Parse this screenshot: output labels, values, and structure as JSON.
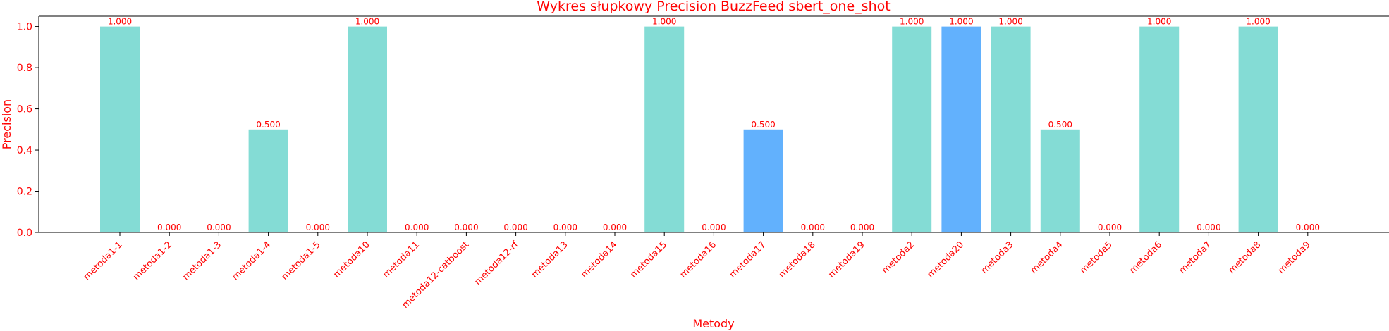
{
  "chart_data": {
    "type": "bar",
    "title": "Wykres słupkowy Precision BuzzFeed sbert_one_shot",
    "xlabel": "Metody",
    "ylabel": "Precision",
    "ylim": [
      0,
      1.05
    ],
    "yticks": [
      "0.0",
      "0.2",
      "0.4",
      "0.6",
      "0.8",
      "1.0"
    ],
    "categories": [
      "metoda1-1",
      "metoda1-2",
      "metoda1-3",
      "metoda1-4",
      "metoda1-5",
      "metoda10",
      "metoda11",
      "metoda12-catboost",
      "metoda12-rf",
      "metoda13",
      "metoda14",
      "metoda15",
      "metoda16",
      "metoda17",
      "metoda18",
      "metoda19",
      "metoda2",
      "metoda20",
      "metoda3",
      "metoda4",
      "metoda5",
      "metoda6",
      "metoda7",
      "metoda8",
      "metoda9"
    ],
    "values": [
      1.0,
      0.0,
      0.0,
      0.5,
      0.0,
      1.0,
      0.0,
      0.0,
      0.0,
      0.0,
      0.0,
      1.0,
      0.0,
      0.5,
      0.0,
      0.0,
      1.0,
      1.0,
      1.0,
      0.5,
      0.0,
      1.0,
      0.0,
      1.0,
      0.0
    ],
    "value_labels": [
      "1.000",
      "0.000",
      "0.000",
      "0.500",
      "0.000",
      "1.000",
      "0.000",
      "0.000",
      "0.000",
      "0.000",
      "0.000",
      "1.000",
      "0.000",
      "0.500",
      "0.000",
      "0.000",
      "1.000",
      "1.000",
      "1.000",
      "0.500",
      "0.000",
      "1.000",
      "0.000",
      "1.000",
      "0.000"
    ],
    "highlighted": [
      "metoda17",
      "metoda20"
    ],
    "colors": {
      "bar": "#84dcd5",
      "bar_highlight": "#62b1fd",
      "text": "#ff0000",
      "axis": "#000000"
    }
  }
}
